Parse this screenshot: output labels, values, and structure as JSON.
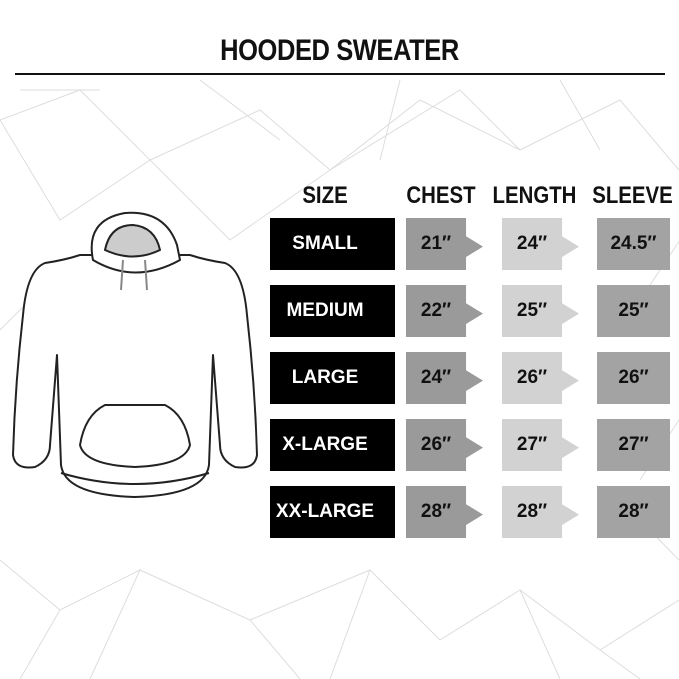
{
  "title": "HOODED SWEATER",
  "columns": [
    "SIZE",
    "CHEST",
    "LENGTH",
    "SLEEVE"
  ],
  "rows": [
    {
      "size": "SMALL",
      "chest": "21″",
      "length": "24″",
      "sleeve": "24.5″"
    },
    {
      "size": "MEDIUM",
      "chest": "22″",
      "length": "25″",
      "sleeve": "25″"
    },
    {
      "size": "LARGE",
      "chest": "24″",
      "length": "26″",
      "sleeve": "26″"
    },
    {
      "size": "X-LARGE",
      "chest": "26″",
      "length": "27″",
      "sleeve": "27″"
    },
    {
      "size": "XX-LARGE",
      "chest": "28″",
      "length": "28″",
      "sleeve": "28″"
    }
  ],
  "colors": {
    "size": "#000000",
    "chest": "#9a9a9a",
    "length": "#d2d2d2",
    "sleeve": "#a3a3a3"
  }
}
